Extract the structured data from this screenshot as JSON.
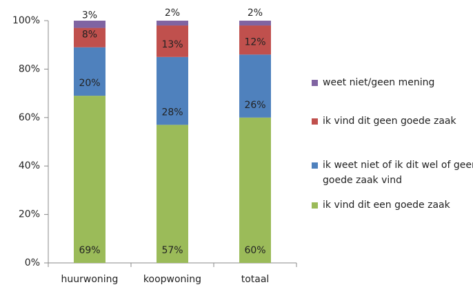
{
  "chart_data": {
    "type": "stacked_bar",
    "categories": [
      "huurwoning",
      "koopwoning",
      "totaal"
    ],
    "series": [
      {
        "name": "ik vind dit een goede zaak",
        "color": "#9bbb59",
        "values": [
          69,
          57,
          60
        ],
        "value_labels": [
          "69%",
          "57%",
          "60%"
        ]
      },
      {
        "name": "ik weet niet of ik dit wel of geen goede zaak vind",
        "color": "#4f81bd",
        "values": [
          20,
          28,
          26
        ],
        "value_labels": [
          "20%",
          "28%",
          "26%"
        ]
      },
      {
        "name": "ik vind dit geen goede zaak",
        "color": "#c0504d",
        "values": [
          8,
          13,
          12
        ],
        "value_labels": [
          "8%",
          "13%",
          "12%"
        ]
      },
      {
        "name": "weet niet/geen mening",
        "color": "#8064a2",
        "values": [
          3,
          2,
          2
        ],
        "value_labels": [
          "3%",
          "2%",
          "2%"
        ]
      }
    ],
    "ylim": [
      0,
      100
    ],
    "yticks": [
      {
        "value": 0,
        "label": "0%"
      },
      {
        "value": 20,
        "label": "20%"
      },
      {
        "value": 40,
        "label": "40%"
      },
      {
        "value": 60,
        "label": "60%"
      },
      {
        "value": 80,
        "label": "80%"
      },
      {
        "value": 100,
        "label": "100%"
      }
    ],
    "legend": "right"
  }
}
